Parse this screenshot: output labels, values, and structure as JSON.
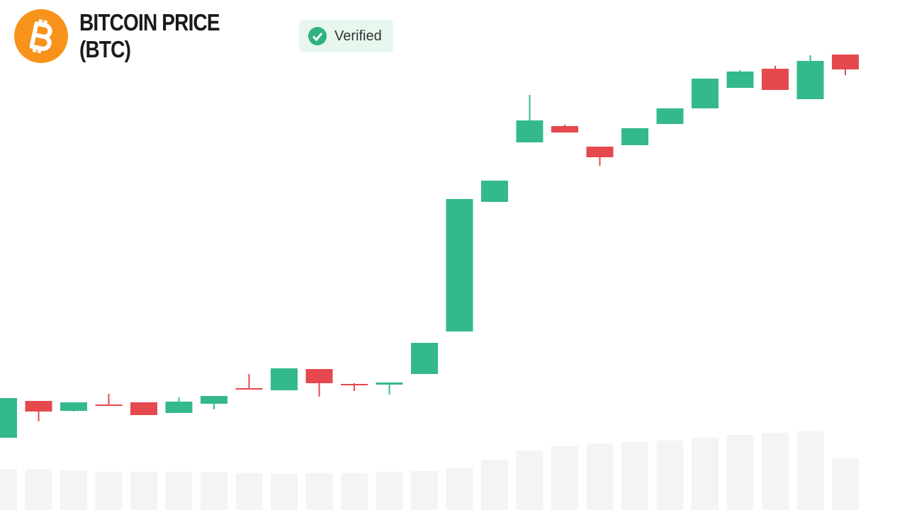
{
  "title": "BITCOIN PRICE (BTC)",
  "badge": "Verified",
  "chart_data": {
    "type": "candlestick",
    "open": [
      102,
      154,
      140,
      149,
      152,
      137,
      150,
      172,
      169,
      199,
      178,
      177,
      192,
      252,
      435,
      519,
      542,
      513,
      515,
      545,
      567,
      596,
      623,
      580,
      643
    ],
    "high": [
      158,
      154,
      152,
      164,
      152,
      159,
      161,
      192,
      200,
      199,
      179,
      180,
      236,
      439,
      465,
      586,
      544,
      513,
      539,
      567,
      609,
      621,
      627,
      642,
      643
    ],
    "low": [
      102,
      125,
      139,
      148,
      134,
      137,
      142,
      170,
      169,
      160,
      168,
      163,
      192,
      252,
      435,
      519,
      533,
      486,
      515,
      545,
      567,
      596,
      593,
      580,
      614
    ],
    "close": [
      158,
      139,
      152,
      148,
      134,
      153,
      161,
      170,
      200,
      179,
      176,
      180,
      236,
      439,
      465,
      550,
      533,
      498,
      539,
      567,
      609,
      619,
      593,
      634,
      622
    ],
    "volume": [
      58,
      58,
      56,
      54,
      54,
      54,
      53,
      52,
      51,
      52,
      52,
      54,
      55,
      59,
      71,
      84,
      90,
      94,
      96,
      98,
      102,
      106,
      109,
      111,
      73
    ],
    "up_color": "#34b98c",
    "down_color": "#e5484d",
    "volume_color": "#f4f4f7",
    "ylim": [
      0,
      720
    ],
    "volume_lim": [
      0,
      720
    ]
  }
}
